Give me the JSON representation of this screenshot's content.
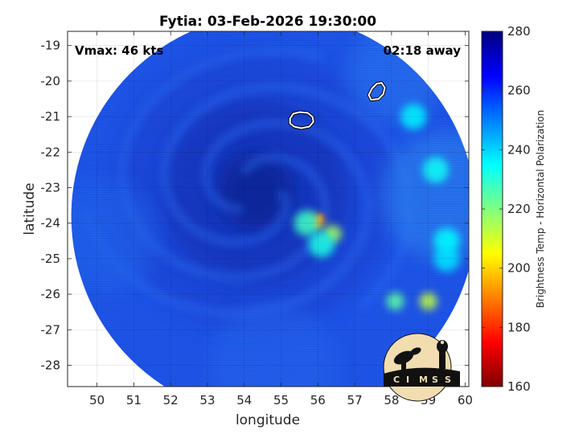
{
  "chart_data": {
    "type": "heatmap",
    "title": "Fytia: 03-Feb-2026 19:30:00",
    "xlabel": "longitude",
    "ylabel": "latitude",
    "xlim": [
      49.2,
      60.1
    ],
    "ylim": [
      -28.6,
      -18.6
    ],
    "xticks": [
      50,
      51,
      52,
      53,
      54,
      55,
      56,
      57,
      58,
      59,
      60
    ],
    "yticks": [
      -19,
      -20,
      -21,
      -22,
      -23,
      -24,
      -25,
      -26,
      -27,
      -28
    ],
    "grid": true,
    "annotations": {
      "vmax": "Vmax: 46 kts",
      "time_away": "02:18 away"
    },
    "colorbar": {
      "label": "Brightness Temp - Horizontal Polarization",
      "range": [
        160,
        280
      ],
      "ticks": [
        160,
        180,
        200,
        220,
        240,
        260,
        280
      ],
      "colormap": "jet"
    },
    "swath": {
      "center": [
        54.8,
        -23.8
      ],
      "radius_deg": 5.5
    },
    "storm_center": [
      54.3,
      -23.1
    ],
    "land_outlines": [
      {
        "name": "Reunion",
        "center": [
          55.55,
          -21.1
        ]
      },
      {
        "name": "Mauritius",
        "center": [
          57.6,
          -20.3
        ]
      }
    ],
    "features": [
      {
        "lon": 56.0,
        "lat": -23.95,
        "tb": 190
      },
      {
        "lon": 55.7,
        "lat": -24.0,
        "tb": 228
      },
      {
        "lon": 56.4,
        "lat": -24.3,
        "tb": 215
      },
      {
        "lon": 56.1,
        "lat": -24.6,
        "tb": 232
      },
      {
        "lon": 58.1,
        "lat": -26.2,
        "tb": 224
      },
      {
        "lon": 59.0,
        "lat": -26.2,
        "tb": 212
      },
      {
        "lon": 59.5,
        "lat": -24.5,
        "tb": 235
      },
      {
        "lon": 59.2,
        "lat": -22.5,
        "tb": 234
      },
      {
        "lon": 58.6,
        "lat": -21.0,
        "tb": 236
      },
      {
        "lon": 59.5,
        "lat": -25.0,
        "tb": 238
      }
    ]
  },
  "logo": {
    "text": "CIMSS"
  }
}
